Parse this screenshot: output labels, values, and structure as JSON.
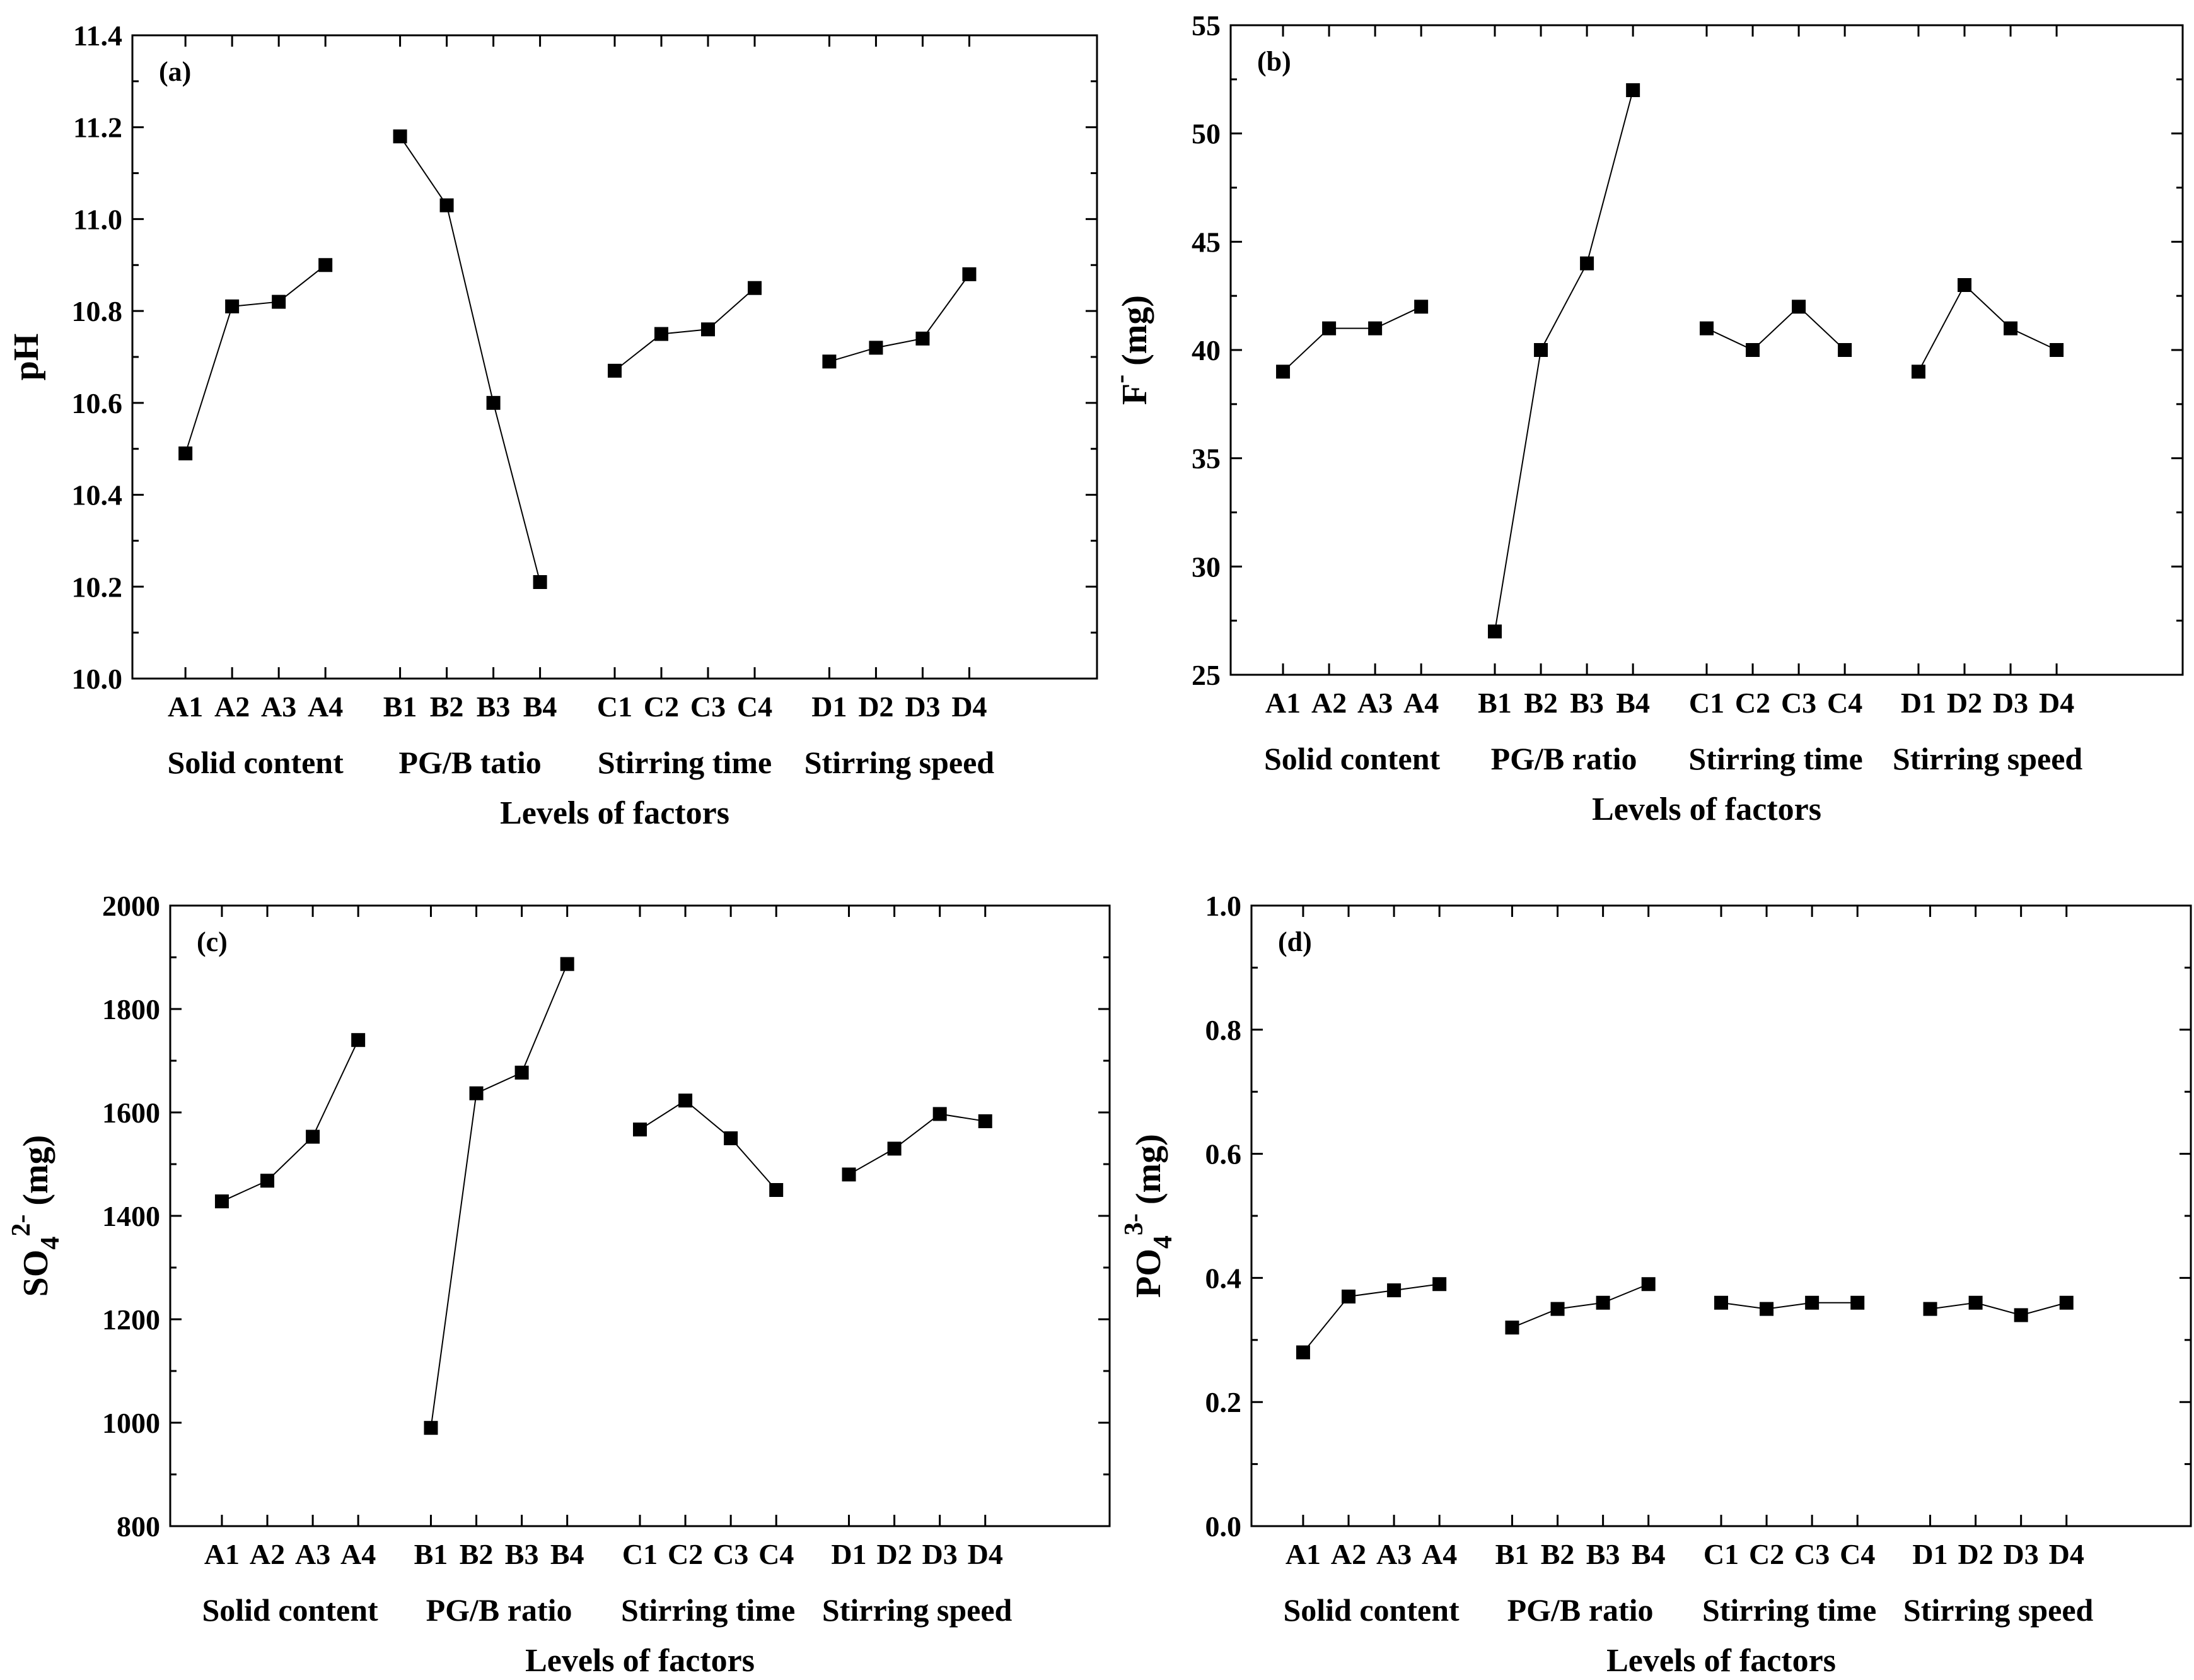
{
  "chart_data": [
    {
      "type": "line",
      "panel_label": "(a)",
      "ylabel": "pH",
      "ylim": [
        10.0,
        11.4
      ],
      "yticks": [
        "10.0",
        "10.2",
        "10.4",
        "10.6",
        "10.8",
        "11.0",
        "11.2",
        "11.4"
      ],
      "xlabel": "Levels of factors",
      "groups": [
        {
          "name": "Solid content",
          "levels": [
            "A1",
            "A2",
            "A3",
            "A4"
          ],
          "values": [
            10.49,
            10.81,
            10.82,
            10.9
          ]
        },
        {
          "name": "PG/B tatio",
          "levels": [
            "B1",
            "B2",
            "B3",
            "B4"
          ],
          "values": [
            11.18,
            11.03,
            10.6,
            10.21
          ]
        },
        {
          "name": "Stirring time",
          "levels": [
            "C1",
            "C2",
            "C3",
            "C4"
          ],
          "values": [
            10.67,
            10.75,
            10.76,
            10.85
          ]
        },
        {
          "name": "Stirring speed",
          "levels": [
            "D1",
            "D2",
            "D3",
            "D4"
          ],
          "values": [
            10.69,
            10.72,
            10.74,
            10.88
          ]
        }
      ]
    },
    {
      "type": "line",
      "panel_label": "(b)",
      "ylabel": "F",
      "ylabel_superscript": "-",
      "ylabel_unit": " (mg)",
      "ylim": [
        25,
        55
      ],
      "yticks": [
        "25",
        "30",
        "35",
        "40",
        "45",
        "50",
        "55"
      ],
      "xlabel": "Levels of factors",
      "groups": [
        {
          "name": "Solid content",
          "levels": [
            "A1",
            "A2",
            "A3",
            "A4"
          ],
          "values": [
            39,
            41,
            41,
            42
          ]
        },
        {
          "name": "PG/B ratio",
          "levels": [
            "B1",
            "B2",
            "B3",
            "B4"
          ],
          "values": [
            27,
            40,
            44,
            52
          ]
        },
        {
          "name": "Stirring time",
          "levels": [
            "C1",
            "C2",
            "C3",
            "C4"
          ],
          "values": [
            41,
            40,
            42,
            40
          ]
        },
        {
          "name": "Stirring speed",
          "levels": [
            "D1",
            "D2",
            "D3",
            "D4"
          ],
          "values": [
            39,
            43,
            41,
            40
          ]
        }
      ]
    },
    {
      "type": "line",
      "panel_label": "(c)",
      "ylabel": "SO",
      "ylabel_subscript": "4",
      "ylabel_superscript": "2-",
      "ylabel_unit": " (mg)",
      "ylim": [
        800,
        2000
      ],
      "yticks": [
        "800",
        "1000",
        "1200",
        "1400",
        "1600",
        "1800",
        "2000"
      ],
      "xlabel": "Levels of factors",
      "groups": [
        {
          "name": "Solid content",
          "levels": [
            "A1",
            "A2",
            "A3",
            "A4"
          ],
          "values": [
            1428,
            1468,
            1553,
            1740
          ]
        },
        {
          "name": "PG/B ratio",
          "levels": [
            "B1",
            "B2",
            "B3",
            "B4"
          ],
          "values": [
            990,
            1637,
            1677,
            1887
          ]
        },
        {
          "name": "Stirring time",
          "levels": [
            "C1",
            "C2",
            "C3",
            "C4"
          ],
          "values": [
            1567,
            1623,
            1550,
            1450
          ]
        },
        {
          "name": "Stirring speed",
          "levels": [
            "D1",
            "D2",
            "D3",
            "D4"
          ],
          "values": [
            1480,
            1530,
            1597,
            1583
          ]
        }
      ]
    },
    {
      "type": "line",
      "panel_label": "(d)",
      "ylabel": "PO",
      "ylabel_subscript": "4",
      "ylabel_superscript": "3-",
      "ylabel_unit": " (mg)",
      "ylim": [
        0.0,
        1.0
      ],
      "yticks": [
        "0.0",
        "0.2",
        "0.4",
        "0.6",
        "0.8",
        "1.0"
      ],
      "xlabel": "Levels of factors",
      "groups": [
        {
          "name": "Solid content",
          "levels": [
            "A1",
            "A2",
            "A3",
            "A4"
          ],
          "values": [
            0.28,
            0.37,
            0.38,
            0.39
          ]
        },
        {
          "name": "PG/B ratio",
          "levels": [
            "B1",
            "B2",
            "B3",
            "B4"
          ],
          "values": [
            0.32,
            0.35,
            0.36,
            0.39
          ]
        },
        {
          "name": "Stirring time",
          "levels": [
            "C1",
            "C2",
            "C3",
            "C4"
          ],
          "values": [
            0.36,
            0.35,
            0.36,
            0.36
          ]
        },
        {
          "name": "Stirring speed",
          "levels": [
            "D1",
            "D2",
            "D3",
            "D4"
          ],
          "values": [
            0.35,
            0.36,
            0.34,
            0.36
          ]
        }
      ]
    }
  ]
}
